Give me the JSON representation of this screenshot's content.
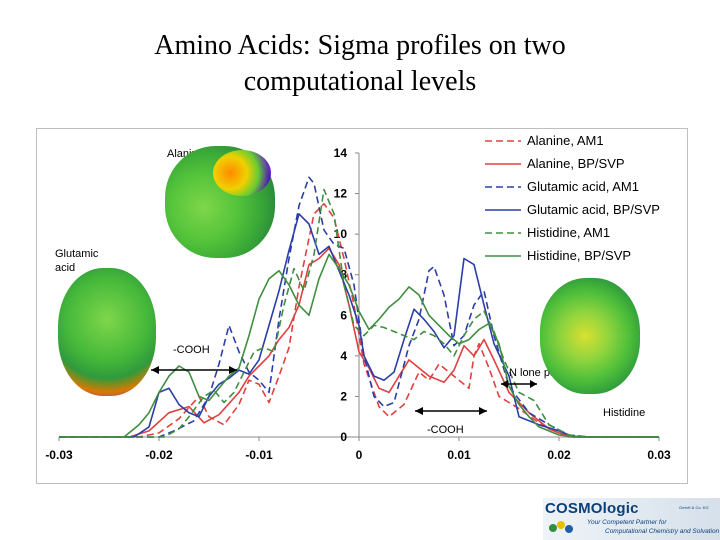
{
  "slide": {
    "title_line1": "Amino Acids: Sigma profiles on two",
    "title_line2": "computational levels"
  },
  "annotations": {
    "alanine": "Alanine",
    "glutamic_line1": "Glutamic",
    "glutamic_line2": "acid",
    "histidine": "Histidine",
    "cooh_left": "-COOH",
    "cooh_right": "-COOH",
    "n_lone_pair": "N lone pair"
  },
  "logo": {
    "name": "COSMOlogic",
    "suffix": "GmbH & Co. KG",
    "tagline_line1": "Your Competent Partner for",
    "tagline_line2": "Computational Chemistry and Solvation"
  },
  "chart_data": {
    "type": "line",
    "title": "",
    "xlabel": "",
    "ylabel": "",
    "xlim": [
      -0.03,
      0.03
    ],
    "ylim": [
      0,
      14
    ],
    "xticks": [
      "-0.03",
      "-0.02",
      "-0.01",
      "0",
      "0.01",
      "0.02",
      "0.03"
    ],
    "yticks": [
      "0",
      "2",
      "4",
      "6",
      "8",
      "10",
      "12",
      "14"
    ],
    "legend_position": "top-right",
    "grid": false,
    "series": [
      {
        "name": "Alanine, AM1",
        "color": "#e04040",
        "dash": "dashed",
        "points": [
          [
            -0.03,
            0
          ],
          [
            -0.022,
            0
          ],
          [
            -0.02,
            0.2
          ],
          [
            -0.018,
            0.9
          ],
          [
            -0.016,
            2.0
          ],
          [
            -0.015,
            1.0
          ],
          [
            -0.0135,
            0.6
          ],
          [
            -0.012,
            1.6
          ],
          [
            -0.011,
            2.8
          ],
          [
            -0.01,
            2.6
          ],
          [
            -0.009,
            1.7
          ],
          [
            -0.008,
            3.0
          ],
          [
            -0.007,
            4.4
          ],
          [
            -0.006,
            7.4
          ],
          [
            -0.0045,
            11.0
          ],
          [
            -0.0035,
            11.5
          ],
          [
            -0.0025,
            10.8
          ],
          [
            -0.0015,
            8.8
          ],
          [
            -0.0005,
            6.5
          ],
          [
            0.0005,
            3.6
          ],
          [
            0.002,
            1.5
          ],
          [
            0.003,
            1.0
          ],
          [
            0.0045,
            1.6
          ],
          [
            0.006,
            3.2
          ],
          [
            0.007,
            2.8
          ],
          [
            0.008,
            3.6
          ],
          [
            0.009,
            3.2
          ],
          [
            0.01,
            2.8
          ],
          [
            0.011,
            2.4
          ],
          [
            0.0115,
            4.0
          ],
          [
            0.012,
            4.6
          ],
          [
            0.013,
            3.4
          ],
          [
            0.014,
            2.0
          ],
          [
            0.016,
            1.4
          ],
          [
            0.018,
            0.7
          ],
          [
            0.02,
            0.2
          ],
          [
            0.022,
            0
          ],
          [
            0.03,
            0
          ]
        ]
      },
      {
        "name": "Alanine, BP/SVP",
        "color": "#e04040",
        "dash": "solid",
        "points": [
          [
            -0.03,
            0
          ],
          [
            -0.023,
            0
          ],
          [
            -0.021,
            0.3
          ],
          [
            -0.019,
            1.2
          ],
          [
            -0.017,
            1.5
          ],
          [
            -0.0155,
            0.7
          ],
          [
            -0.014,
            1.1
          ],
          [
            -0.012,
            2.2
          ],
          [
            -0.011,
            3.0
          ],
          [
            -0.01,
            3.5
          ],
          [
            -0.009,
            4.0
          ],
          [
            -0.008,
            4.8
          ],
          [
            -0.007,
            5.4
          ],
          [
            -0.006,
            6.5
          ],
          [
            -0.005,
            8.5
          ],
          [
            -0.004,
            8.8
          ],
          [
            -0.003,
            9.3
          ],
          [
            -0.002,
            8.5
          ],
          [
            -0.001,
            6.5
          ],
          [
            0.0,
            4.2
          ],
          [
            0.001,
            3.4
          ],
          [
            0.002,
            2.4
          ],
          [
            0.003,
            2.2
          ],
          [
            0.004,
            3.0
          ],
          [
            0.005,
            3.8
          ],
          [
            0.006,
            3.4
          ],
          [
            0.007,
            3.0
          ],
          [
            0.0085,
            2.7
          ],
          [
            0.0095,
            3.3
          ],
          [
            0.0105,
            4.5
          ],
          [
            0.0115,
            4.0
          ],
          [
            0.0125,
            4.8
          ],
          [
            0.0135,
            3.8
          ],
          [
            0.015,
            2.2
          ],
          [
            0.017,
            1.2
          ],
          [
            0.019,
            0.4
          ],
          [
            0.021,
            0
          ],
          [
            0.03,
            0
          ]
        ]
      },
      {
        "name": "Glutamic acid, AM1",
        "color": "#2c3ea8",
        "dash": "dashed",
        "points": [
          [
            -0.03,
            0
          ],
          [
            -0.02,
            0
          ],
          [
            -0.0185,
            0.3
          ],
          [
            -0.0165,
            0.8
          ],
          [
            -0.015,
            2.0
          ],
          [
            -0.014,
            3.6
          ],
          [
            -0.013,
            5.5
          ],
          [
            -0.012,
            4.2
          ],
          [
            -0.011,
            3.2
          ],
          [
            -0.01,
            2.8
          ],
          [
            -0.009,
            2.2
          ],
          [
            -0.008,
            5.8
          ],
          [
            -0.007,
            8.8
          ],
          [
            -0.006,
            11.4
          ],
          [
            -0.005,
            12.8
          ],
          [
            -0.0045,
            12.5
          ],
          [
            -0.0035,
            10.2
          ],
          [
            -0.0025,
            9.5
          ],
          [
            -0.0015,
            9.3
          ],
          [
            -0.0005,
            7.5
          ],
          [
            0.0005,
            4.0
          ],
          [
            0.0015,
            2.0
          ],
          [
            0.0025,
            1.5
          ],
          [
            0.0035,
            1.7
          ],
          [
            0.005,
            4.5
          ],
          [
            0.006,
            5.8
          ],
          [
            0.007,
            8.2
          ],
          [
            0.0075,
            8.4
          ],
          [
            0.0085,
            7.0
          ],
          [
            0.0095,
            4.5
          ],
          [
            0.0105,
            5.0
          ],
          [
            0.0115,
            6.5
          ],
          [
            0.0125,
            7.2
          ],
          [
            0.0135,
            5.0
          ],
          [
            0.015,
            2.5
          ],
          [
            0.017,
            1.2
          ],
          [
            0.019,
            0.6
          ],
          [
            0.021,
            0.1
          ],
          [
            0.023,
            0
          ],
          [
            0.03,
            0
          ]
        ]
      },
      {
        "name": "Glutamic acid, BP/SVP",
        "color": "#2c3ea8",
        "dash": "solid",
        "points": [
          [
            -0.03,
            0
          ],
          [
            -0.0225,
            0
          ],
          [
            -0.021,
            0.5
          ],
          [
            -0.02,
            2.2
          ],
          [
            -0.019,
            2.4
          ],
          [
            -0.018,
            1.6
          ],
          [
            -0.017,
            1.2
          ],
          [
            -0.016,
            1.0
          ],
          [
            -0.015,
            2.0
          ],
          [
            -0.014,
            2.6
          ],
          [
            -0.013,
            2.9
          ],
          [
            -0.012,
            3.3
          ],
          [
            -0.011,
            3.1
          ],
          [
            -0.01,
            3.8
          ],
          [
            -0.009,
            5.5
          ],
          [
            -0.008,
            7.2
          ],
          [
            -0.007,
            9.2
          ],
          [
            -0.006,
            11.0
          ],
          [
            -0.005,
            10.5
          ],
          [
            -0.004,
            9.0
          ],
          [
            -0.003,
            9.4
          ],
          [
            -0.002,
            8.2
          ],
          [
            -0.001,
            7.0
          ],
          [
            0.0,
            5.5
          ],
          [
            0.0005,
            4.0
          ],
          [
            0.0015,
            3.0
          ],
          [
            0.0025,
            2.8
          ],
          [
            0.0035,
            3.2
          ],
          [
            0.0045,
            4.8
          ],
          [
            0.0055,
            6.3
          ],
          [
            0.0065,
            5.8
          ],
          [
            0.0075,
            5.2
          ],
          [
            0.0085,
            4.4
          ],
          [
            0.0095,
            5.0
          ],
          [
            0.0105,
            8.8
          ],
          [
            0.0115,
            8.5
          ],
          [
            0.0125,
            6.5
          ],
          [
            0.0135,
            4.6
          ],
          [
            0.015,
            3.0
          ],
          [
            0.016,
            1.0
          ],
          [
            0.018,
            0.6
          ],
          [
            0.02,
            0.3
          ],
          [
            0.0215,
            0
          ],
          [
            0.03,
            0
          ]
        ]
      },
      {
        "name": "Histidine, AM1",
        "color": "#3f8f3f",
        "dash": "dashed",
        "points": [
          [
            -0.03,
            0
          ],
          [
            -0.0195,
            0
          ],
          [
            -0.018,
            0.4
          ],
          [
            -0.017,
            1.0
          ],
          [
            -0.0155,
            2.0
          ],
          [
            -0.0145,
            2.3
          ],
          [
            -0.0135,
            1.7
          ],
          [
            -0.0125,
            2.2
          ],
          [
            -0.0115,
            3.2
          ],
          [
            -0.0105,
            4.2
          ],
          [
            -0.0095,
            4.4
          ],
          [
            -0.0085,
            4.2
          ],
          [
            -0.0075,
            6.5
          ],
          [
            -0.0065,
            8.3
          ],
          [
            -0.0055,
            7.2
          ],
          [
            -0.0045,
            9.0
          ],
          [
            -0.0035,
            12.2
          ],
          [
            -0.0025,
            11.0
          ],
          [
            -0.0015,
            7.5
          ],
          [
            -0.0005,
            5.5
          ],
          [
            0.0005,
            5.0
          ],
          [
            0.0015,
            5.5
          ],
          [
            0.0025,
            5.4
          ],
          [
            0.0035,
            5.2
          ],
          [
            0.0045,
            5.0
          ],
          [
            0.0055,
            4.8
          ],
          [
            0.0065,
            5.2
          ],
          [
            0.0075,
            5.0
          ],
          [
            0.0085,
            4.6
          ],
          [
            0.0095,
            4.0
          ],
          [
            0.0105,
            5.0
          ],
          [
            0.0115,
            5.8
          ],
          [
            0.0125,
            6.2
          ],
          [
            0.0135,
            5.2
          ],
          [
            0.0145,
            3.8
          ],
          [
            0.016,
            2.2
          ],
          [
            0.0175,
            1.8
          ],
          [
            0.019,
            0.6
          ],
          [
            0.021,
            0.1
          ],
          [
            0.023,
            0
          ],
          [
            0.03,
            0
          ]
        ]
      },
      {
        "name": "Histidine, BP/SVP",
        "color": "#3f8f3f",
        "dash": "solid",
        "points": [
          [
            -0.03,
            0
          ],
          [
            -0.0235,
            0
          ],
          [
            -0.022,
            0.6
          ],
          [
            -0.021,
            1.2
          ],
          [
            -0.02,
            2.2
          ],
          [
            -0.019,
            3.0
          ],
          [
            -0.018,
            3.5
          ],
          [
            -0.017,
            3.2
          ],
          [
            -0.016,
            2.0
          ],
          [
            -0.015,
            1.8
          ],
          [
            -0.014,
            2.4
          ],
          [
            -0.013,
            3.0
          ],
          [
            -0.012,
            3.4
          ],
          [
            -0.011,
            5.0
          ],
          [
            -0.01,
            6.8
          ],
          [
            -0.009,
            7.8
          ],
          [
            -0.008,
            8.2
          ],
          [
            -0.007,
            7.5
          ],
          [
            -0.006,
            6.5
          ],
          [
            -0.005,
            6.0
          ],
          [
            -0.004,
            7.8
          ],
          [
            -0.003,
            9.0
          ],
          [
            -0.002,
            8.3
          ],
          [
            -0.001,
            7.5
          ],
          [
            0.0,
            6.2
          ],
          [
            0.001,
            5.3
          ],
          [
            0.002,
            5.8
          ],
          [
            0.003,
            6.4
          ],
          [
            0.004,
            6.8
          ],
          [
            0.005,
            7.4
          ],
          [
            0.006,
            7.0
          ],
          [
            0.007,
            6.0
          ],
          [
            0.008,
            5.5
          ],
          [
            0.009,
            5.0
          ],
          [
            0.01,
            4.6
          ],
          [
            0.011,
            4.8
          ],
          [
            0.012,
            5.3
          ],
          [
            0.013,
            5.6
          ],
          [
            0.014,
            4.6
          ],
          [
            0.015,
            2.5
          ],
          [
            0.016,
            1.6
          ],
          [
            0.017,
            1.0
          ],
          [
            0.018,
            0.5
          ],
          [
            0.02,
            0.1
          ],
          [
            0.022,
            0
          ],
          [
            0.03,
            0
          ]
        ]
      }
    ]
  }
}
